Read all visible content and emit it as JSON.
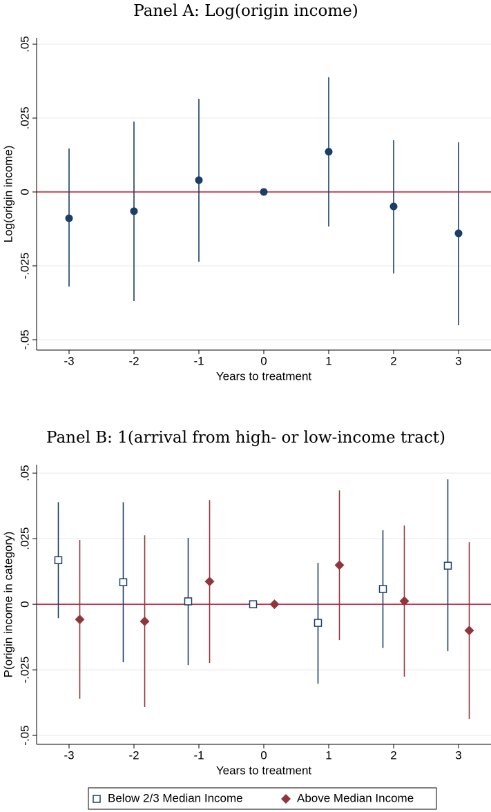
{
  "chart_data": [
    {
      "type": "scatter",
      "title": "Panel A: Log(origin income)",
      "x_label": "Years to treatment",
      "y_label": "Log(origin income)",
      "x": [
        -3,
        -2,
        -1,
        0,
        1,
        2,
        3
      ],
      "series": [
        {
          "color": "#1a3e66",
          "marker": "circle",
          "values": [
            -0.0089,
            -0.0065,
            0.004,
            0,
            0.0136,
            -0.0049,
            -0.014
          ],
          "lower": [
            -0.032,
            -0.0369,
            -0.0236,
            0,
            -0.0117,
            -0.0276,
            -0.0451
          ],
          "upper": [
            0.0147,
            0.0238,
            0.0315,
            0,
            0.0388,
            0.0175,
            0.0168
          ]
        }
      ],
      "xlim": [
        -3.5,
        3.5
      ],
      "ylim": [
        -0.0535,
        0.0521
      ],
      "xticks": [
        -3,
        -2,
        -1,
        0,
        1,
        2,
        3
      ],
      "yticks": [
        {
          "value": -0.05,
          "label": "-.05"
        },
        {
          "value": -0.025,
          "label": "-.025"
        },
        0,
        {
          "value": 0.025,
          "label": ".025"
        },
        {
          "value": 0.05,
          "label": ".05"
        }
      ],
      "grid": true,
      "yline": 0,
      "yline_color": "#c8102e"
    },
    {
      "type": "scatter",
      "title": "Panel B: 1(arrival from high- or low-income tract)",
      "x_label": "Years to treatment",
      "y_label": "P(origin income in category)",
      "x": [
        -3,
        -2,
        -1,
        0,
        1,
        2,
        3
      ],
      "series": [
        {
          "name": "Below 2/3 Median Income",
          "color": "#1a3e66",
          "marker": "square",
          "values": [
            0.0168,
            0.0084,
            0.0011,
            0,
            -0.0071,
            0.0058,
            0.0147
          ],
          "lower": [
            -0.0053,
            -0.0221,
            -0.0232,
            0,
            -0.0303,
            -0.0166,
            -0.0179
          ],
          "upper": [
            0.0389,
            0.0389,
            0.0253,
            0,
            0.0158,
            0.0282,
            0.0476
          ]
        },
        {
          "name": "Above Median Income",
          "color": "#90353b",
          "marker": "diamond",
          "values": [
            -0.0058,
            -0.0065,
            0.0087,
            0,
            0.0149,
            0.0012,
            -0.01
          ],
          "lower": [
            -0.036,
            -0.0392,
            -0.0224,
            0,
            -0.0137,
            -0.0276,
            -0.0437
          ],
          "upper": [
            0.0245,
            0.0263,
            0.0397,
            0,
            0.0434,
            0.03,
            0.0237
          ]
        }
      ],
      "xlim": [
        -3.5,
        3.5
      ],
      "ylim": [
        -0.0534,
        0.0532
      ],
      "xticks": [
        -3,
        -2,
        -1,
        0,
        1,
        2,
        3
      ],
      "yticks": [
        {
          "value": -0.05,
          "label": "-.05"
        },
        {
          "value": -0.025,
          "label": "-.025"
        },
        0,
        {
          "value": 0.025,
          "label": ".025"
        },
        {
          "value": 0.05,
          "label": ".05"
        }
      ],
      "grid": true,
      "yline": 0,
      "yline_color": "#c8102e",
      "legend": "bottom"
    }
  ]
}
